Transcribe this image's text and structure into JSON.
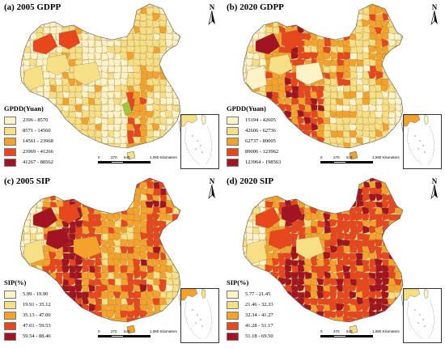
{
  "panels": [
    {
      "title": "(a) 2005 GDPP",
      "legend_title": "GPDD(Yuan)",
      "classes": [
        {
          "label": "2396 - 8570",
          "color": "#fdf3c8"
        },
        {
          "label": "8571 - 14560",
          "color": "#f7df86"
        },
        {
          "label": "14561 - 23968",
          "color": "#f4a22c"
        },
        {
          "label": "23969 - 41266",
          "color": "#e8461d"
        },
        {
          "label": "41267 - 88562",
          "color": "#a31423"
        }
      ],
      "highlight": "#9fc53c"
    },
    {
      "title": "(b) 2020 GDPP",
      "legend_title": "GPDD(Yuan)",
      "classes": [
        {
          "label": "15194 - 42605",
          "color": "#fdf3c8"
        },
        {
          "label": "42606 - 62736",
          "color": "#f7df86"
        },
        {
          "label": "62737 - 89005",
          "color": "#f4a22c"
        },
        {
          "label": "89006 - 123962",
          "color": "#e8461d"
        },
        {
          "label": "123964 - 198563",
          "color": "#a31423"
        }
      ],
      "highlight": ""
    },
    {
      "title": "(c) 2005 SIP",
      "legend_title": "SIP(%)",
      "classes": [
        {
          "label": "5.99 - 19.90",
          "color": "#fdf3c8"
        },
        {
          "label": "19.91 - 35.12",
          "color": "#f7df86"
        },
        {
          "label": "35.13 - 47.00",
          "color": "#f4a22c"
        },
        {
          "label": "47.01 - 59.53",
          "color": "#e8461d"
        },
        {
          "label": "59.54 - 88.46",
          "color": "#a31423"
        }
      ],
      "highlight": ""
    },
    {
      "title": "(d) 2020 SIP",
      "legend_title": "SIP(%)",
      "classes": [
        {
          "label": "5.77 - 21.45",
          "color": "#fdf3c8"
        },
        {
          "label": "21.46 - 32.33",
          "color": "#f7df86"
        },
        {
          "label": "32.34 - 41.27",
          "color": "#f4a22c"
        },
        {
          "label": "41.28 - 51.17",
          "color": "#e8461d"
        },
        {
          "label": "51.18 - 69.50",
          "color": "#a31423"
        }
      ],
      "highlight": ""
    }
  ],
  "north_label": "N",
  "scale": {
    "ticks": [
      "0",
      "270",
      "540"
    ],
    "end_label": "1,080 Kilometers"
  }
}
